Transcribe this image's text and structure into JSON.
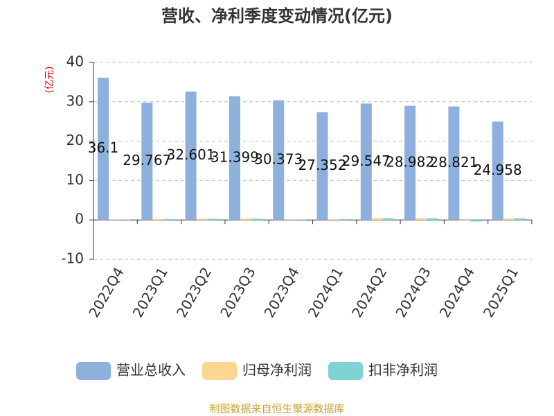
{
  "chart_data": {
    "type": "bar",
    "title": "营收、净利季度变动情况(亿元)",
    "y_label": "(亿元)",
    "categories": [
      "2022Q4",
      "2023Q1",
      "2023Q2",
      "2023Q3",
      "2023Q4",
      "2024Q1",
      "2024Q2",
      "2024Q3",
      "2024Q4",
      "2025Q1"
    ],
    "series": [
      {
        "name": "营业总收入",
        "color": "#8eb0dc",
        "values": [
          36.1,
          29.767,
          32.601,
          31.399,
          30.373,
          27.352,
          29.547,
          28.982,
          28.821,
          24.958
        ]
      },
      {
        "name": "归母净利润",
        "color": "#fdd792",
        "values": [
          0.1,
          0.2,
          0.3,
          0.3,
          0.1,
          0.2,
          0.4,
          0.4,
          -0.2,
          0.4
        ]
      },
      {
        "name": "扣非净利润",
        "color": "#7fd3d3",
        "values": [
          0.1,
          0.2,
          0.3,
          0.3,
          0.1,
          0.2,
          0.4,
          0.4,
          -0.4,
          0.4
        ]
      }
    ],
    "ylim": [
      -10,
      40
    ],
    "yticks": [
      -10,
      0,
      10,
      20,
      30,
      40
    ],
    "grid": true,
    "source": "制图数据来自恒生聚源数据库"
  }
}
